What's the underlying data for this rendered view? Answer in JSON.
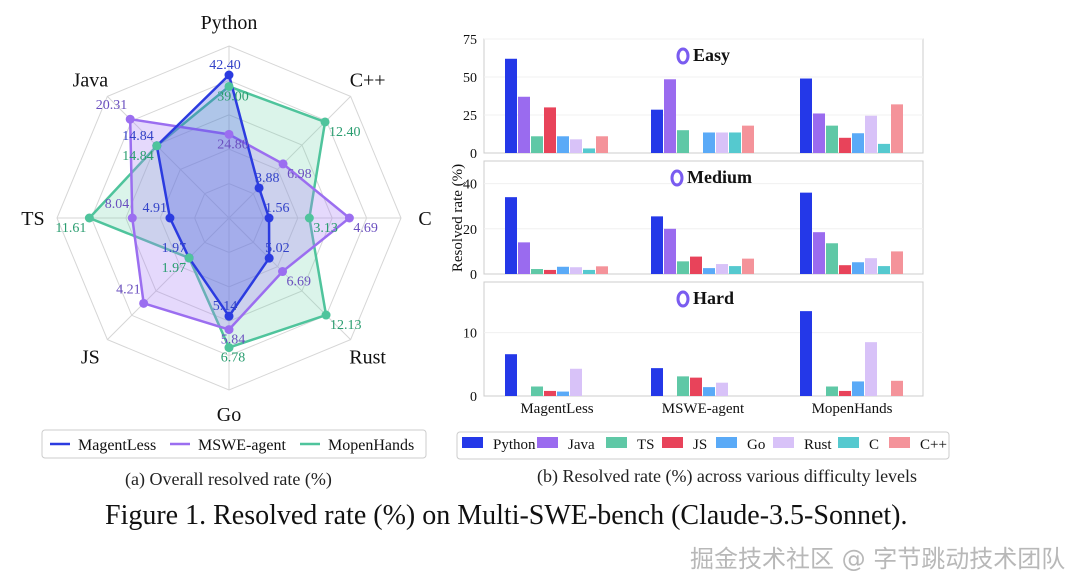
{
  "chart_data": [
    {
      "type": "radar",
      "caption": "(a) Overall resolved rate (%)",
      "axes": [
        "Python",
        "C++",
        "C",
        "Rust",
        "Go",
        "JS",
        "TS",
        "Java"
      ],
      "axis_max": [
        51,
        15.7,
        6.7,
        15.2,
        9,
        6,
        14.3,
        25
      ],
      "legend_position": "bottom",
      "series": [
        {
          "name": "MagentLess",
          "color": "#2b3be0",
          "values": [
            42.4,
            3.88,
            1.56,
            5.02,
            5.14,
            1.97,
            4.91,
            14.84
          ],
          "labels": [
            "42.40",
            "3.88",
            "1.56",
            "5.02",
            "5.14",
            "1.97",
            "4.91",
            "14.84"
          ]
        },
        {
          "name": "MSWE-agent",
          "color": "#9b6ef0",
          "values": [
            24.8,
            6.98,
            4.69,
            6.69,
            5.84,
            4.21,
            8.04,
            20.31
          ],
          "labels": [
            "24.80",
            "6.98",
            "4.69",
            "6.69",
            "5.84",
            "4.21",
            "8.04",
            "20.31"
          ]
        },
        {
          "name": "MopenHands",
          "color": "#4fc49c",
          "values": [
            39.0,
            12.4,
            3.13,
            12.13,
            6.78,
            1.97,
            11.61,
            14.84
          ],
          "labels": [
            "39.00",
            "12.40",
            "3.13",
            "12.13",
            "6.78",
            "1.97",
            "11.61",
            "14.84"
          ]
        }
      ]
    },
    {
      "type": "bar",
      "caption": "(b) Resolved rate (%) across various difficulty levels",
      "ylabel": "Resolved rate (%)",
      "categories": [
        "MagentLess",
        "MSWE-agent",
        "MopenHands"
      ],
      "legend_position": "bottom",
      "series_names": [
        "Python",
        "Java",
        "TS",
        "JS",
        "Go",
        "Rust",
        "C",
        "C++"
      ],
      "series_colors": [
        "#2438e8",
        "#9a6bef",
        "#5fc8a6",
        "#e8435a",
        "#5aaaf7",
        "#d8c2f8",
        "#55c9cf",
        "#f4939a"
      ],
      "panels": [
        {
          "title": "Easy",
          "ylim": [
            0,
            75
          ],
          "yticks": [
            0,
            25,
            50,
            75
          ],
          "values": [
            [
              62,
              37,
              11,
              30,
              11,
              9,
              3,
              11
            ],
            [
              28.5,
              48.5,
              15,
              0,
              13.5,
              13.5,
              13.5,
              18
            ],
            [
              49,
              26,
              18,
              10,
              13,
              24.5,
              6,
              32
            ]
          ]
        },
        {
          "title": "Medium",
          "ylim": [
            0,
            50
          ],
          "yticks": [
            0,
            20,
            40
          ],
          "values": [
            [
              34,
              14,
              2.2,
              1.8,
              3.2,
              3,
              1.8,
              3.4
            ],
            [
              25.5,
              20,
              5.6,
              7.7,
              2.6,
              4.4,
              3.5,
              6.8
            ],
            [
              36,
              18.5,
              13.6,
              3.9,
              5.2,
              7,
              3.5,
              10
            ]
          ]
        },
        {
          "title": "Hard",
          "ylim": [
            0,
            18
          ],
          "yticks": [
            0,
            10
          ],
          "values": [
            [
              6.6,
              0,
              1.5,
              0.8,
              0.7,
              4.3,
              0,
              0
            ],
            [
              4.4,
              0,
              3.1,
              2.9,
              1.4,
              2.1,
              0,
              0
            ],
            [
              13.4,
              0,
              1.5,
              0.8,
              2.3,
              8.5,
              0,
              2.4
            ]
          ]
        }
      ]
    }
  ],
  "figure_caption": "Figure 1. Resolved rate (%) on Multi-SWE-bench (Claude-3.5-Sonnet).",
  "watermark": "掘金技术社区 @ 字节跳动技术团队"
}
